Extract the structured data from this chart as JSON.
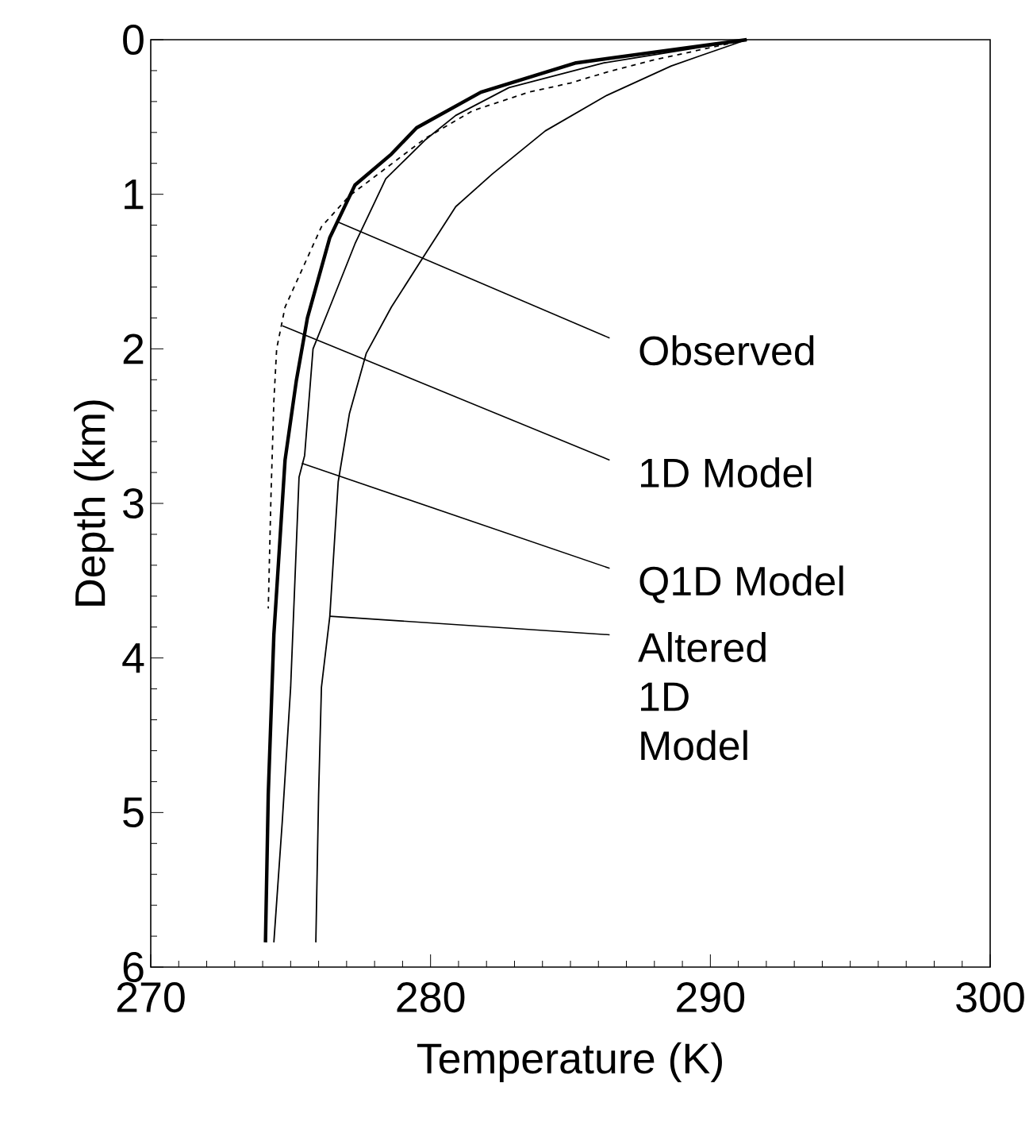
{
  "chart_data": {
    "type": "line",
    "xlabel": "Temperature (K)",
    "ylabel": "Depth (km)",
    "xlim": [
      270,
      300
    ],
    "xticks": [
      270,
      280,
      290,
      300
    ],
    "ylim": [
      6,
      0
    ],
    "yticks": [
      0,
      1,
      2,
      3,
      4,
      5,
      6
    ],
    "series": [
      {
        "color": "#000000",
        "line_style": "solid",
        "x": [
          291.3,
          285.2,
          281.8,
          279.5,
          278.6,
          277.3,
          276.4,
          275.6,
          275.2,
          274.8,
          274.4,
          274.2,
          274.1
        ],
        "values": [
          0,
          0.15,
          0.34,
          0.57,
          0.74,
          0.94,
          1.28,
          1.8,
          2.21,
          2.72,
          3.85,
          4.88,
          5.84
        ]
      },
      {
        "color": "#000000",
        "line_style": "dashed",
        "x": [
          291.3,
          288.0,
          286.3,
          285.0,
          283.5,
          282.0,
          281.5,
          279.8,
          277.1,
          276.1,
          275.4,
          274.8,
          274.5,
          274.4,
          274.3,
          274.2
        ],
        "values": [
          0,
          0.13,
          0.21,
          0.28,
          0.34,
          0.43,
          0.46,
          0.64,
          1.01,
          1.21,
          1.49,
          1.73,
          2.0,
          2.34,
          2.93,
          3.68
        ]
      },
      {
        "color": "#000000",
        "line_style": "solid",
        "x": [
          291.3,
          286.2,
          282.8,
          280.9,
          279.8,
          278.4,
          277.3,
          276.4,
          275.8,
          275.5,
          275.3,
          275.0,
          274.7,
          274.4
        ],
        "values": [
          0,
          0.15,
          0.31,
          0.49,
          0.65,
          0.9,
          1.32,
          1.73,
          2.0,
          2.69,
          2.83,
          4.19,
          5.06,
          5.84
        ]
      },
      {
        "color": "#000000",
        "line_style": "solid",
        "x": [
          291.3,
          289.7,
          288.6,
          286.3,
          284.1,
          282.2,
          280.9,
          279.8,
          278.6,
          277.7,
          277.1,
          276.7,
          276.4,
          276.1,
          276.0,
          275.9
        ],
        "values": [
          0,
          0.1,
          0.17,
          0.36,
          0.59,
          0.87,
          1.08,
          1.39,
          1.73,
          2.03,
          2.42,
          2.86,
          3.73,
          4.19,
          4.88,
          5.84
        ]
      }
    ],
    "annotations": [
      {
        "text": "Observed",
        "x": 276.7,
        "y": 1.18
      },
      {
        "text": "1D Model",
        "x": 274.7,
        "y": 1.85
      },
      {
        "text": "Q1D Model",
        "x": 275.4,
        "y": 2.74
      },
      {
        "text": "Altered 1D Model",
        "x": 276.4,
        "y": 3.73
      }
    ]
  }
}
